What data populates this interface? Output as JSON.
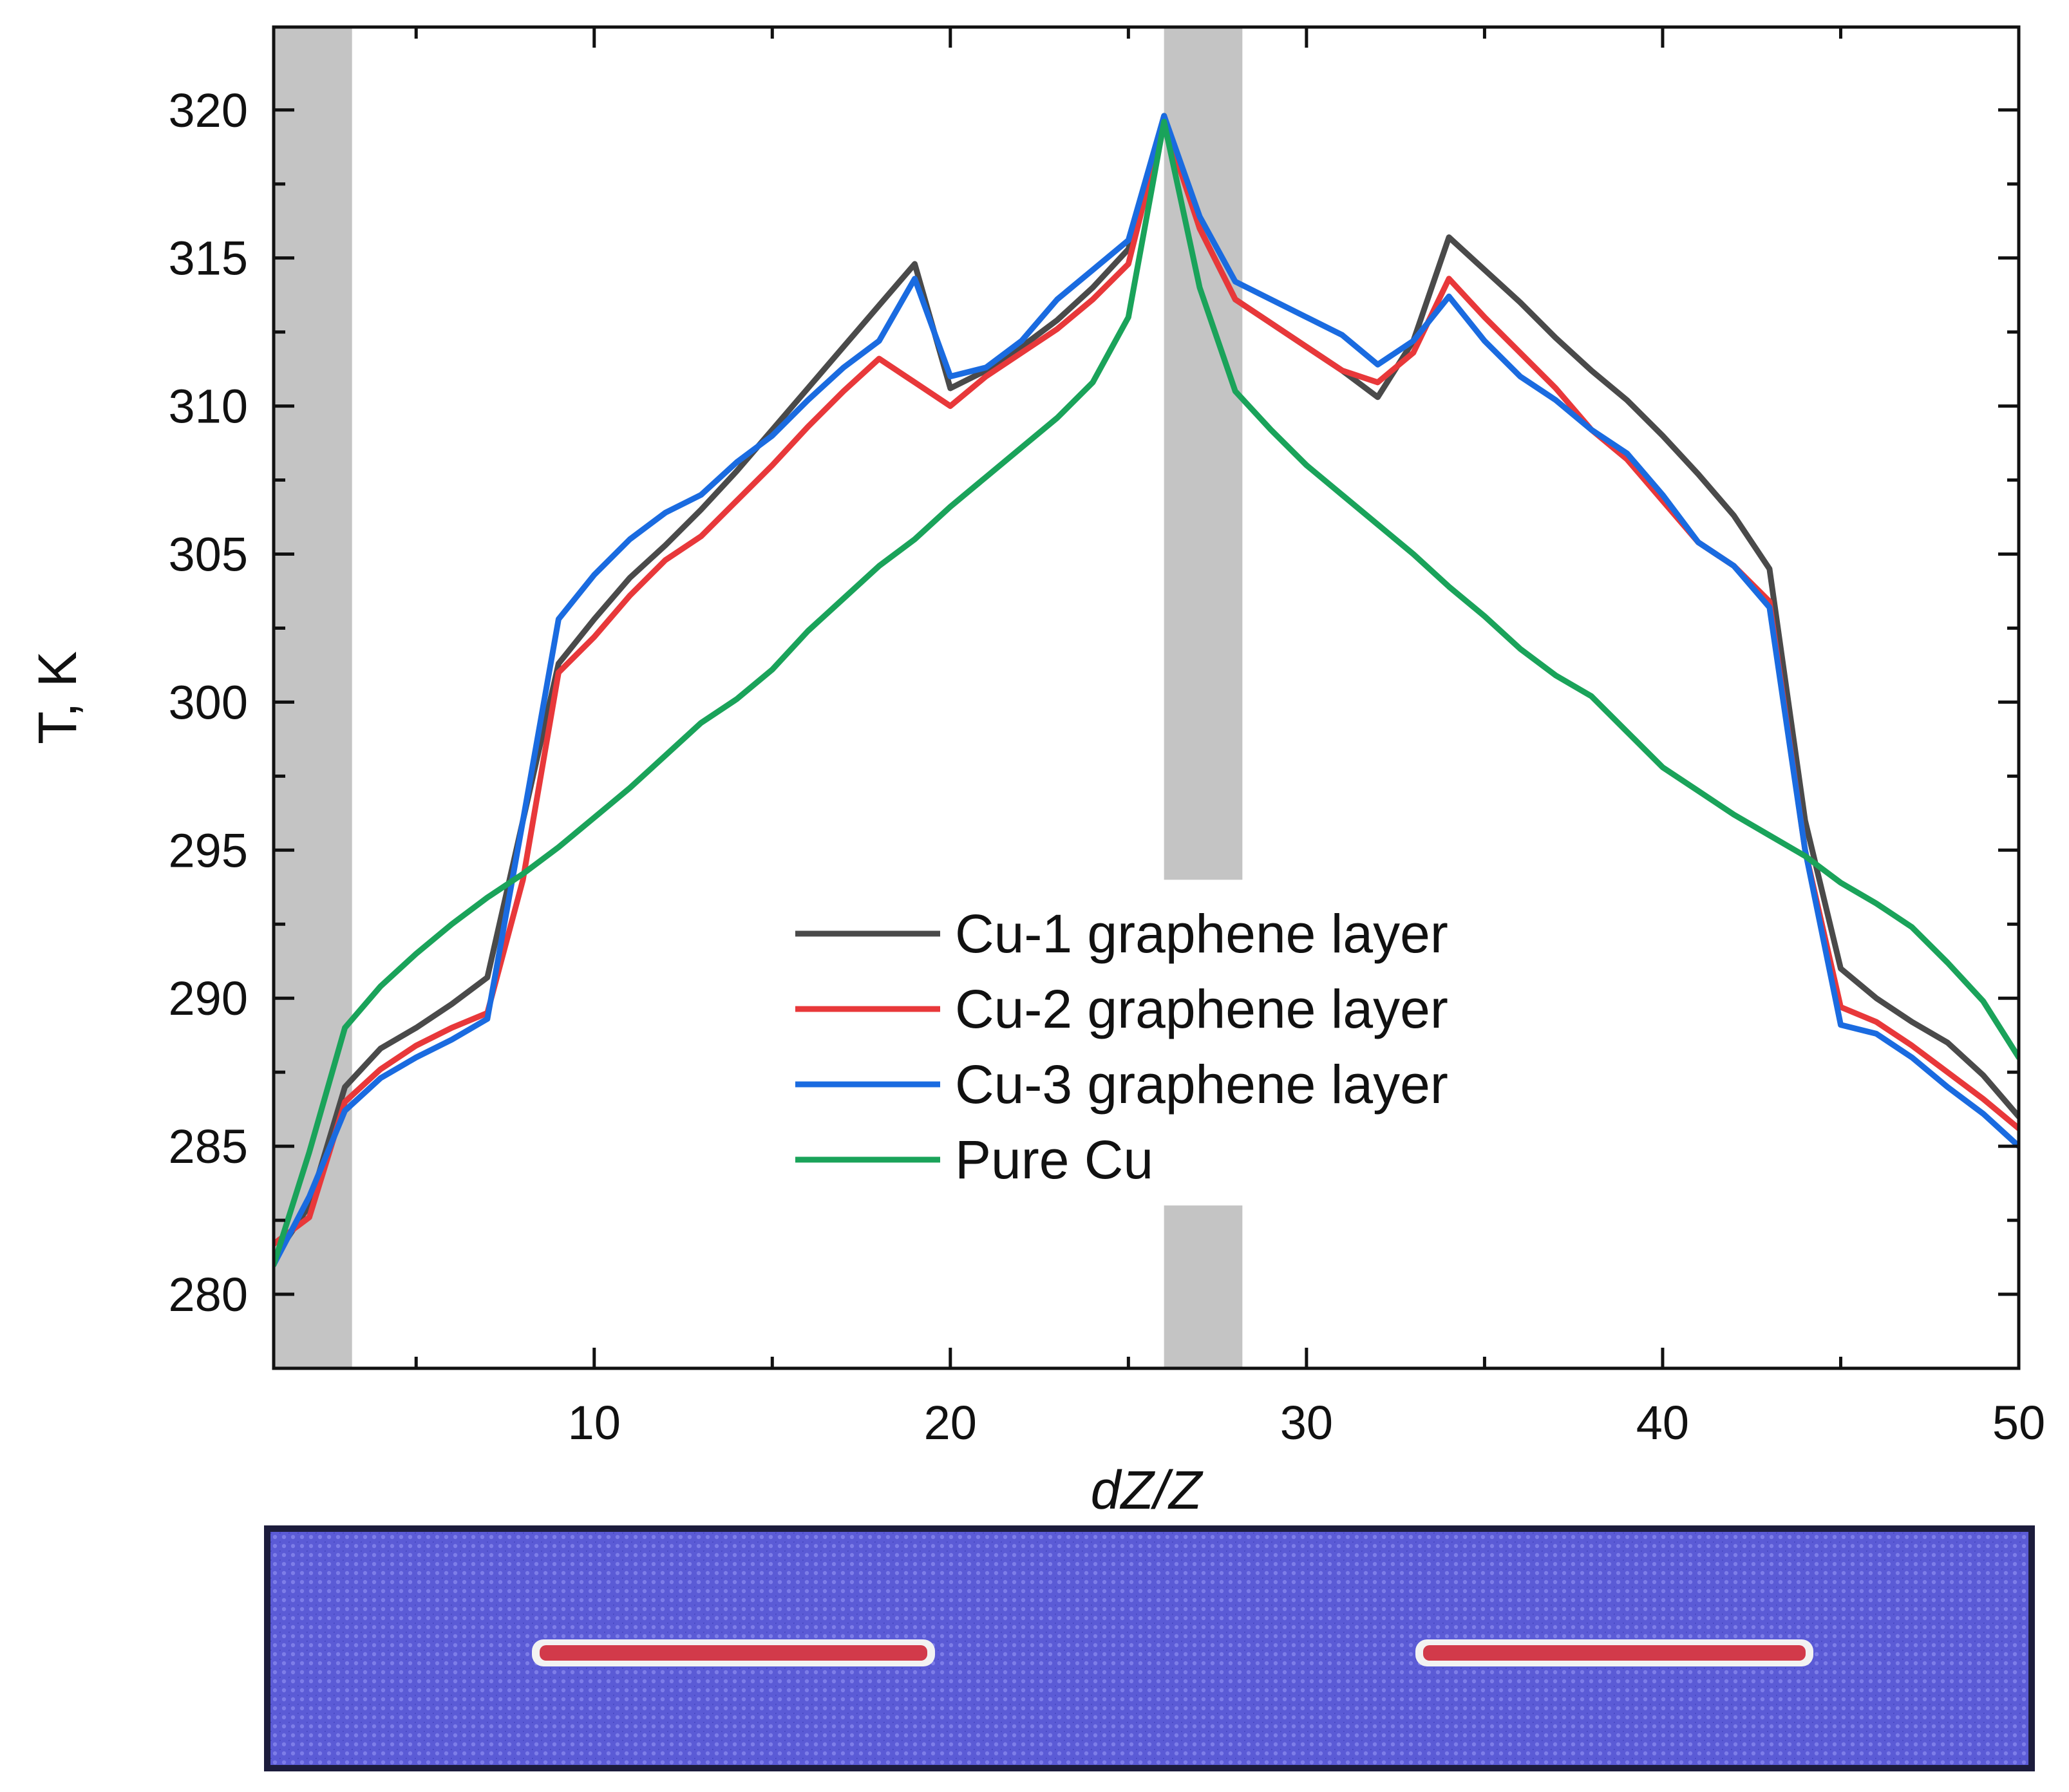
{
  "chart_data": {
    "type": "line",
    "title": "",
    "xlabel": "dZ/Z",
    "ylabel": "T, K",
    "xlim": [
      1,
      50
    ],
    "ylim": [
      277.5,
      322.8
    ],
    "x_ticks": [
      10,
      20,
      30,
      40,
      50
    ],
    "x_tick_labels": [
      "10",
      "20",
      "30",
      "40",
      "50"
    ],
    "y_ticks": [
      280,
      285,
      290,
      295,
      300,
      305,
      310,
      315,
      320
    ],
    "y_tick_labels": [
      "280",
      "285",
      "290",
      "295",
      "300",
      "305",
      "310",
      "315",
      "320"
    ],
    "grid": false,
    "legend_position": "center",
    "shaded_regions": [
      {
        "x_from": 1,
        "x_to": 3.2,
        "y_from": 277.5,
        "y_to": 322.8
      },
      {
        "x_from": 26,
        "x_to": 28.2,
        "y_from": 294,
        "y_to": 322.8
      },
      {
        "x_from": 26,
        "x_to": 28.2,
        "y_from": 277.5,
        "y_to": 283
      }
    ],
    "x": [
      1,
      2,
      3,
      4,
      5,
      6,
      7,
      8,
      9,
      10,
      11,
      12,
      13,
      14,
      15,
      16,
      17,
      18,
      19,
      20,
      21,
      22,
      23,
      24,
      25,
      26,
      27,
      28,
      29,
      30,
      31,
      32,
      33,
      34,
      35,
      36,
      37,
      38,
      39,
      40,
      41,
      42,
      43,
      44,
      45,
      46,
      47,
      48,
      49,
      50
    ],
    "series": [
      {
        "name": "Cu-1 graphene layer",
        "color": "#4a4a4a",
        "values": [
          281.2,
          283.0,
          287.0,
          288.3,
          289.0,
          289.8,
          290.7,
          296.0,
          301.3,
          302.8,
          304.2,
          305.3,
          306.5,
          307.8,
          309.2,
          310.6,
          312.0,
          313.4,
          314.8,
          310.6,
          311.2,
          312.0,
          312.9,
          314.0,
          315.3,
          319.8,
          316.0,
          313.6,
          312.8,
          312.0,
          311.2,
          310.3,
          312.2,
          315.7,
          314.6,
          313.5,
          312.3,
          311.2,
          310.2,
          309.0,
          307.7,
          306.3,
          304.5,
          296.0,
          291.0,
          290.0,
          289.2,
          288.5,
          287.4,
          286.0
        ]
      },
      {
        "name": "Cu-2 graphene layer",
        "color": "#e8383a",
        "values": [
          281.7,
          282.6,
          286.5,
          287.6,
          288.4,
          289.0,
          289.5,
          294.0,
          301.0,
          302.2,
          303.6,
          304.8,
          305.6,
          306.8,
          308.0,
          309.3,
          310.5,
          311.6,
          310.8,
          310.0,
          311.0,
          311.8,
          312.6,
          313.6,
          314.8,
          319.6,
          316.0,
          313.6,
          312.8,
          312.0,
          311.2,
          310.8,
          311.8,
          314.3,
          313.0,
          311.8,
          310.6,
          309.2,
          308.2,
          306.8,
          305.4,
          304.6,
          303.4,
          295.0,
          289.7,
          289.2,
          288.4,
          287.5,
          286.6,
          285.6
        ]
      },
      {
        "name": "Cu-3 graphene layer",
        "color": "#1a6be0",
        "values": [
          281.0,
          283.3,
          286.2,
          287.3,
          288.0,
          288.6,
          289.3,
          296.0,
          302.8,
          304.3,
          305.5,
          306.4,
          307.0,
          308.1,
          309.0,
          310.2,
          311.3,
          312.2,
          314.3,
          311.0,
          311.3,
          312.2,
          313.6,
          314.6,
          315.6,
          319.8,
          316.4,
          314.2,
          313.6,
          313.0,
          312.4,
          311.4,
          312.2,
          313.7,
          312.2,
          311.0,
          310.2,
          309.2,
          308.4,
          307.0,
          305.4,
          304.6,
          303.2,
          295.0,
          289.1,
          288.8,
          288.0,
          287.0,
          286.1,
          285.0
        ]
      },
      {
        "name": "Pure Cu",
        "color": "#1aa35a",
        "values": [
          281.0,
          284.8,
          289.0,
          290.4,
          291.5,
          292.5,
          293.4,
          294.2,
          295.1,
          296.1,
          297.1,
          298.2,
          299.3,
          300.1,
          301.1,
          302.4,
          303.5,
          304.6,
          305.5,
          306.6,
          307.6,
          308.6,
          309.6,
          310.8,
          313.0,
          319.6,
          314.0,
          310.5,
          309.2,
          308.0,
          307.0,
          306.0,
          305.0,
          303.9,
          302.9,
          301.8,
          300.9,
          300.2,
          299.0,
          297.8,
          297.0,
          296.2,
          295.5,
          294.8,
          293.9,
          293.2,
          292.4,
          291.2,
          289.9,
          288.0
        ]
      }
    ]
  },
  "structure_image": {
    "description_label": "",
    "background_color": "#5b5bd6",
    "border_color": "#1c1c3c",
    "layer_color": "#d23a4a",
    "layer_outline_color": "#f2f2f2"
  }
}
